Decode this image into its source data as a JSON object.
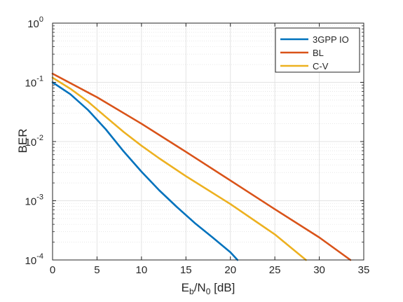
{
  "chart_data": {
    "type": "line",
    "title": "",
    "xlabel": {
      "main": "E",
      "sub1": "b",
      "mid": "/N",
      "sub2": "0",
      "unit": " [dB]"
    },
    "ylabel": "BER",
    "xlim": [
      0,
      35
    ],
    "ylim": [
      0.0001,
      1
    ],
    "yscale": "log",
    "grid": true,
    "minor_grid": true,
    "legend_position": "top-right",
    "xticks": [
      0,
      5,
      10,
      15,
      20,
      25,
      30,
      35
    ],
    "xtick_labels": [
      "0",
      "5",
      "10",
      "15",
      "20",
      "25",
      "30",
      "35"
    ],
    "yticks": [
      {
        "value": 1,
        "base": "10",
        "exp": "0"
      },
      {
        "value": 0.1,
        "base": "10",
        "exp": "-1"
      },
      {
        "value": 0.01,
        "base": "10",
        "exp": "-2"
      },
      {
        "value": 0.001,
        "base": "10",
        "exp": "-3"
      },
      {
        "value": 0.0001,
        "base": "10",
        "exp": "-4"
      }
    ],
    "series": [
      {
        "name": "3GPP IO",
        "color": "#0072BD",
        "x": [
          0,
          2,
          4,
          6,
          8,
          10,
          12,
          14,
          16,
          18,
          20,
          20.8
        ],
        "y": [
          0.1,
          0.063,
          0.034,
          0.016,
          0.0068,
          0.0031,
          0.0015,
          0.00078,
          0.00042,
          0.00024,
          0.000135,
          0.0001
        ]
      },
      {
        "name": "BL",
        "color": "#D95319",
        "x": [
          0,
          5,
          10,
          15,
          20,
          25,
          30,
          33.5
        ],
        "y": [
          0.14,
          0.056,
          0.02,
          0.0067,
          0.0022,
          0.00072,
          0.00024,
          0.0001
        ]
      },
      {
        "name": "C-V",
        "color": "#EDB120",
        "x": [
          0,
          2,
          4,
          6,
          8,
          10,
          12,
          15,
          20,
          25,
          28.5
        ],
        "y": [
          0.12,
          0.078,
          0.047,
          0.026,
          0.0145,
          0.0085,
          0.0052,
          0.0026,
          0.00088,
          0.00027,
          0.0001
        ]
      }
    ]
  }
}
